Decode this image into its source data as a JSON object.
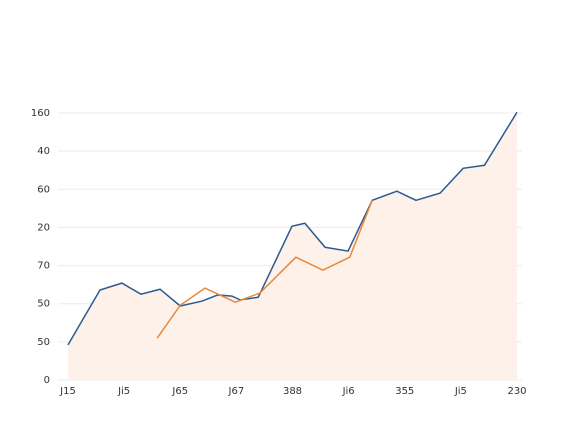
{
  "chart_data": {
    "type": "line",
    "xlim": [
      0,
      8
    ],
    "xticks": [
      {
        "value": 0,
        "label": "J15"
      },
      {
        "value": 1,
        "label": "Ji5"
      },
      {
        "value": 2,
        "label": "J65"
      },
      {
        "value": 3,
        "label": "J67"
      },
      {
        "value": 4,
        "label": "388"
      },
      {
        "value": 5,
        "label": "Ji6"
      },
      {
        "value": 6,
        "label": "355"
      },
      {
        "value": 7,
        "label": "Ji5"
      },
      {
        "value": 8,
        "label": "230"
      }
    ],
    "ylim": [
      0,
      7
    ],
    "yticks": [
      {
        "value": 0,
        "label": "0"
      },
      {
        "value": 1,
        "label": "50"
      },
      {
        "value": 2,
        "label": "50"
      },
      {
        "value": 3,
        "label": "70"
      },
      {
        "value": 4,
        "label": "20"
      },
      {
        "value": 5,
        "label": "60"
      },
      {
        "value": 6,
        "label": "40"
      },
      {
        "value": 7,
        "label": "160"
      }
    ],
    "grid": true,
    "series": [
      {
        "color": "#2b5b8f",
        "area_color": "#fdf1ea",
        "x": [
          0,
          0.57,
          0.96,
          1.3,
          1.64,
          2.0,
          2.39,
          2.67,
          2.92,
          3.07,
          3.39,
          3.99,
          4.22,
          4.58,
          4.99,
          5.42,
          5.86,
          6.2,
          6.63,
          7.04,
          7.42,
          8.0
        ],
        "values": [
          0.92,
          2.36,
          2.54,
          2.25,
          2.38,
          1.94,
          2.07,
          2.23,
          2.2,
          2.1,
          2.17,
          4.03,
          4.11,
          3.48,
          3.38,
          4.71,
          4.95,
          4.71,
          4.9,
          5.55,
          5.63,
          7.02
        ]
      },
      {
        "color": "#e8883a",
        "x": [
          1.59,
          2.0,
          2.44,
          2.98,
          3.42,
          4.06,
          4.54,
          5.02,
          5.42
        ],
        "values": [
          1.1,
          1.96,
          2.41,
          2.04,
          2.28,
          3.22,
          2.88,
          3.22,
          4.71
        ]
      }
    ]
  }
}
